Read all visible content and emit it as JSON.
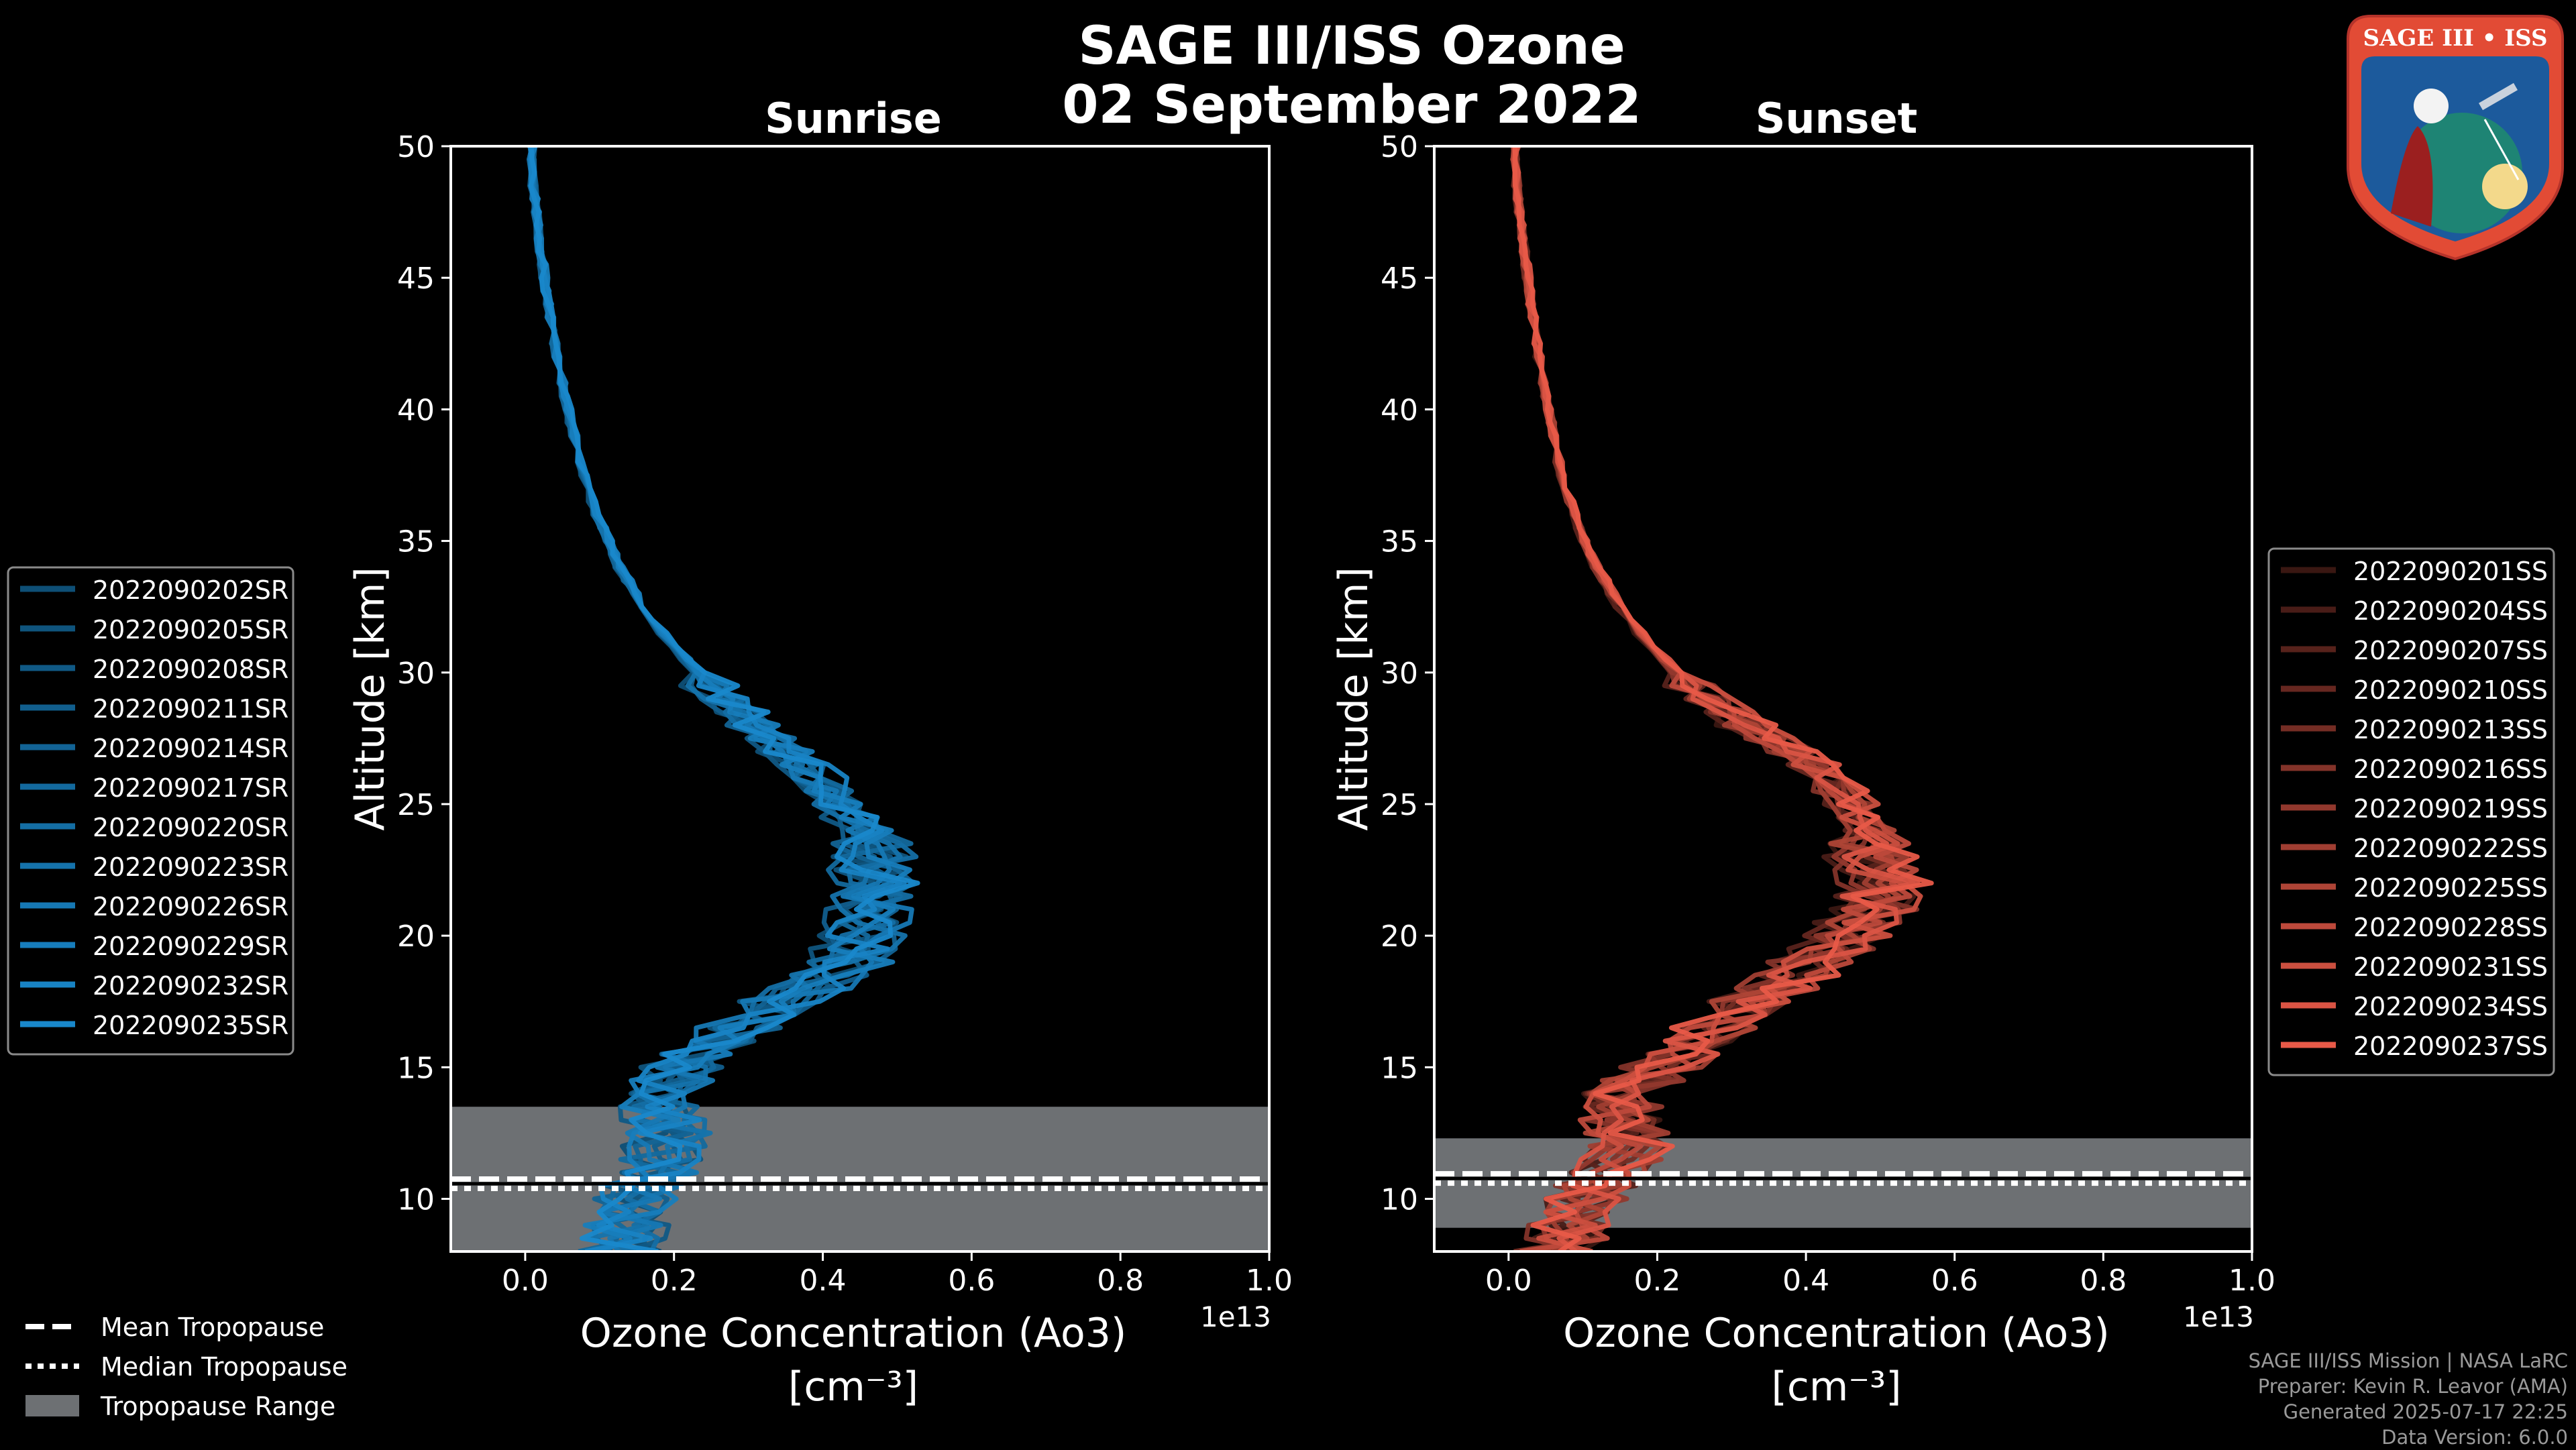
{
  "figure": {
    "title_line1": "SAGE III/ISS Ozone",
    "title_line2": "02 September 2022",
    "exponent_label": "1e13",
    "xlabel_line1": "Ozone Concentration (Ao3)",
    "xlabel_line2": "[cm⁻³]",
    "ylabel": "Altitude [km]"
  },
  "credits": {
    "line1": "SAGE III/ISS Mission | NASA LaRC",
    "line2": "Preparer: Kevin R. Leavor (AMA)",
    "line3": "Generated 2025-07-17 22:25",
    "line4": "Data Version: 6.0.0"
  },
  "logo": {
    "text": "SAGE III • ISS",
    "colors": {
      "ring": "#e24b35",
      "field": "#1c5a9c",
      "text": "#ffffff"
    }
  },
  "tropopause_legend": {
    "mean": "Mean Tropopause",
    "median": "Median Tropopause",
    "range": "Tropopause Range"
  },
  "chart_data": [
    {
      "type": "line",
      "title": "Sunrise",
      "xlabel": "Ozone Concentration (Ao3) [cm⁻³]",
      "ylabel": "Altitude [km]",
      "x_scale": "1e13",
      "xlim": [
        -0.1,
        1.0
      ],
      "ylim": [
        8,
        50
      ],
      "xticks": [
        0.0,
        0.2,
        0.4,
        0.6,
        0.8,
        1.0
      ],
      "yticks": [
        10,
        15,
        20,
        25,
        30,
        35,
        40,
        45,
        50
      ],
      "color": "#1a8fd6",
      "tropopause": {
        "mean": 10.6,
        "median": 10.6,
        "range": [
          8.0,
          13.5
        ]
      },
      "mean_profile": {
        "altitude": [
          8,
          9,
          10,
          11,
          12,
          13,
          14,
          15,
          16,
          17,
          18,
          19,
          20,
          21,
          22,
          23,
          24,
          25,
          26,
          27,
          28,
          29,
          30,
          31,
          32,
          33,
          34,
          35,
          36,
          37,
          38,
          40,
          42,
          44,
          46,
          48,
          50
        ],
        "ozone": [
          0.12,
          0.13,
          0.14,
          0.16,
          0.18,
          0.18,
          0.17,
          0.2,
          0.24,
          0.3,
          0.36,
          0.41,
          0.43,
          0.44,
          0.44,
          0.44,
          0.43,
          0.4,
          0.37,
          0.33,
          0.29,
          0.25,
          0.22,
          0.19,
          0.16,
          0.14,
          0.12,
          0.105,
          0.092,
          0.08,
          0.07,
          0.054,
          0.04,
          0.029,
          0.02,
          0.012,
          0.005
        ]
      },
      "series": [
        {
          "name": "2022090202SR"
        },
        {
          "name": "2022090205SR"
        },
        {
          "name": "2022090208SR"
        },
        {
          "name": "2022090211SR"
        },
        {
          "name": "2022090214SR"
        },
        {
          "name": "2022090217SR"
        },
        {
          "name": "2022090220SR"
        },
        {
          "name": "2022090223SR"
        },
        {
          "name": "2022090226SR"
        },
        {
          "name": "2022090229SR"
        },
        {
          "name": "2022090232SR"
        },
        {
          "name": "2022090235SR"
        }
      ]
    },
    {
      "type": "line",
      "title": "Sunset",
      "xlabel": "Ozone Concentration (Ao3) [cm⁻³]",
      "ylabel": "Altitude [km]",
      "x_scale": "1e13",
      "xlim": [
        -0.1,
        1.0
      ],
      "ylim": [
        8,
        50
      ],
      "xticks": [
        0.0,
        0.2,
        0.4,
        0.6,
        0.8,
        1.0
      ],
      "yticks": [
        10,
        15,
        20,
        25,
        30,
        35,
        40,
        45,
        50
      ],
      "color": "#e85a48",
      "tropopause": {
        "mean": 10.8,
        "median": 10.8,
        "range": [
          8.9,
          12.3
        ]
      },
      "mean_profile": {
        "altitude": [
          8,
          9,
          10,
          11,
          12,
          13,
          14,
          15,
          16,
          17,
          18,
          19,
          20,
          21,
          22,
          23,
          24,
          25,
          26,
          27,
          28,
          29,
          30,
          31,
          32,
          33,
          34,
          35,
          36,
          37,
          38,
          40,
          42,
          44,
          46,
          48,
          50
        ],
        "ozone": [
          0.06,
          0.08,
          0.1,
          0.13,
          0.15,
          0.14,
          0.15,
          0.19,
          0.23,
          0.28,
          0.33,
          0.38,
          0.43,
          0.46,
          0.47,
          0.46,
          0.45,
          0.43,
          0.4,
          0.36,
          0.3,
          0.25,
          0.21,
          0.18,
          0.15,
          0.13,
          0.11,
          0.095,
          0.083,
          0.072,
          0.063,
          0.05,
          0.038,
          0.028,
          0.02,
          0.012,
          0.006
        ]
      },
      "series": [
        {
          "name": "2022090201SS"
        },
        {
          "name": "2022090204SS"
        },
        {
          "name": "2022090207SS"
        },
        {
          "name": "2022090210SS"
        },
        {
          "name": "2022090213SS"
        },
        {
          "name": "2022090216SS"
        },
        {
          "name": "2022090219SS"
        },
        {
          "name": "2022090222SS"
        },
        {
          "name": "2022090225SS"
        },
        {
          "name": "2022090228SS"
        },
        {
          "name": "2022090231SS"
        },
        {
          "name": "2022090234SS"
        },
        {
          "name": "2022090237SS"
        }
      ]
    }
  ]
}
